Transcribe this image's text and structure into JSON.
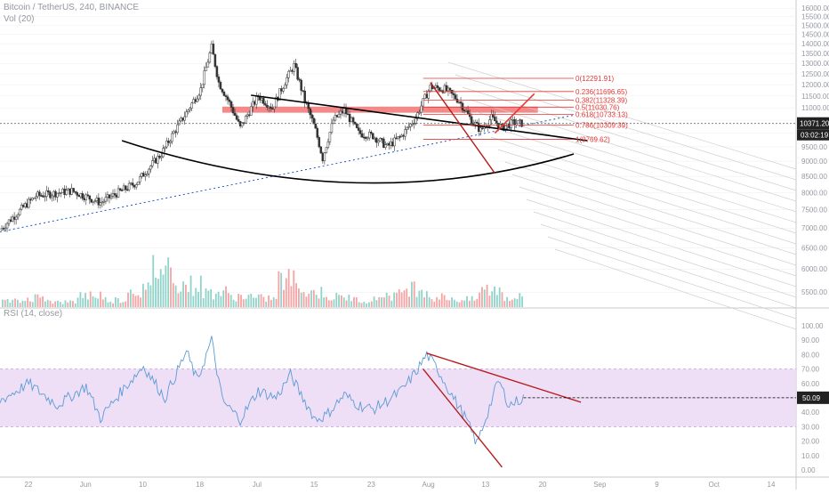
{
  "header": {
    "symbol_line": "Bitcoin / TetherUS, 240, BINANCE",
    "volume_line": "Vol (20)",
    "rsi_line": "RSI (14, close)"
  },
  "colors": {
    "up": "#26a69a",
    "down": "#ef5350",
    "axis_text": "#9598a1",
    "fib": "#e53935",
    "band": "#f06b6b",
    "trend": "#000000",
    "rsi_line": "#5b9bd5",
    "rsi_band": "#ead7f4",
    "grid": "#ececec"
  },
  "price_axis_labels": [
    "16000.00",
    "15500.00",
    "15000.00",
    "14500.00",
    "14000.00",
    "13500.00",
    "13000.00",
    "12500.00",
    "12000.00",
    "11500.00",
    "11000.00",
    "10500.00",
    "10000.00",
    "9500.00",
    "9000.00",
    "8500.00",
    "8000.00",
    "7500.00",
    "7000.00",
    "6500.00",
    "6000.00",
    "5500.00"
  ],
  "current_price": {
    "price": "10371.20",
    "countdown": "03:02:19"
  },
  "rsi_axis_labels": [
    "100.00",
    "90.00",
    "80.00",
    "70.00",
    "60.00",
    "50.00",
    "40.00",
    "30.00",
    "20.00",
    "10.00",
    "0.00"
  ],
  "rsi_current": "50.09",
  "time_axis_labels": [
    "22",
    "Jun",
    "10",
    "18",
    "Jul",
    "15",
    "23",
    "Aug",
    "13",
    "20",
    "Sep",
    "9",
    "Oct",
    "14"
  ],
  "chart_data": [
    {
      "type": "candlestick",
      "title": "Bitcoin / TetherUS, 240, BINANCE",
      "ylim": [
        5200,
        16500
      ],
      "price_scale": "log",
      "x_labels": [
        "22",
        "Jun",
        "10",
        "18",
        "Jul",
        "15",
        "23",
        "Aug",
        "13",
        "20",
        "Sep",
        "9",
        "Oct",
        "14"
      ],
      "last_price": 10371.2,
      "trend_path": [
        {
          "t": 0,
          "p": 6950
        },
        {
          "t": 10,
          "p": 7900
        },
        {
          "t": 20,
          "p": 8050
        },
        {
          "t": 28,
          "p": 7700
        },
        {
          "t": 38,
          "p": 8300
        },
        {
          "t": 45,
          "p": 9250
        },
        {
          "t": 52,
          "p": 10800
        },
        {
          "t": 56,
          "p": 11800
        },
        {
          "t": 59,
          "p": 13800
        },
        {
          "t": 61,
          "p": 12100
        },
        {
          "t": 64,
          "p": 11200
        },
        {
          "t": 67,
          "p": 10200
        },
        {
          "t": 72,
          "p": 11500
        },
        {
          "t": 76,
          "p": 11000
        },
        {
          "t": 80,
          "p": 12300
        },
        {
          "t": 82,
          "p": 12900
        },
        {
          "t": 85,
          "p": 11300
        },
        {
          "t": 88,
          "p": 10100
        },
        {
          "t": 90,
          "p": 9100
        },
        {
          "t": 93,
          "p": 10500
        },
        {
          "t": 96,
          "p": 10900
        },
        {
          "t": 100,
          "p": 10000
        },
        {
          "t": 104,
          "p": 9900
        },
        {
          "t": 108,
          "p": 9500
        },
        {
          "t": 112,
          "p": 9900
        },
        {
          "t": 116,
          "p": 10600
        },
        {
          "t": 120,
          "p": 11900
        },
        {
          "t": 124,
          "p": 11800
        },
        {
          "t": 128,
          "p": 11300
        },
        {
          "t": 131,
          "p": 10600
        },
        {
          "t": 134,
          "p": 10100
        },
        {
          "t": 137,
          "p": 10600
        },
        {
          "t": 140,
          "p": 10200
        },
        {
          "t": 143,
          "p": 10400
        },
        {
          "t": 146,
          "p": 10371
        }
      ],
      "fibonacci": [
        {
          "label": "0(12291.91)",
          "price": 12291.91
        },
        {
          "label": "0.236(11696.65)",
          "price": 11696.65
        },
        {
          "label": "0.382(11328.39)",
          "price": 11328.39
        },
        {
          "label": "0.5(11030.76)",
          "price": 11030.76
        },
        {
          "label": "0.618(10733.13)",
          "price": 10733.13
        },
        {
          "label": "0.786(10309.39)",
          "price": 10309.39
        },
        {
          "label": "1(9769.62)",
          "price": 9769.62
        }
      ],
      "resistance_zone": [
        10800,
        11050
      ]
    },
    {
      "type": "bar",
      "title": "Vol (20)",
      "series": [
        {
          "values_relative": [
            0.12,
            0.2,
            0.1,
            0.25,
            0.15,
            0.35,
            0.8,
            0.45,
            0.3,
            0.22,
            0.18,
            0.55,
            0.3,
            0.2,
            0.15,
            0.25,
            0.4,
            0.2,
            0.15,
            0.35,
            0.2
          ]
        }
      ]
    },
    {
      "type": "line",
      "title": "RSI (14, close)",
      "ylim": [
        0,
        100
      ],
      "band": [
        30,
        70
      ],
      "last_value": 50.09,
      "path": [
        {
          "t": 0,
          "v": 48
        },
        {
          "t": 8,
          "v": 60
        },
        {
          "t": 16,
          "v": 45
        },
        {
          "t": 24,
          "v": 58
        },
        {
          "t": 28,
          "v": 36
        },
        {
          "t": 34,
          "v": 55
        },
        {
          "t": 40,
          "v": 72
        },
        {
          "t": 46,
          "v": 50
        },
        {
          "t": 52,
          "v": 82
        },
        {
          "t": 55,
          "v": 62
        },
        {
          "t": 59,
          "v": 90
        },
        {
          "t": 62,
          "v": 48
        },
        {
          "t": 67,
          "v": 35
        },
        {
          "t": 72,
          "v": 55
        },
        {
          "t": 77,
          "v": 50
        },
        {
          "t": 81,
          "v": 66
        },
        {
          "t": 84,
          "v": 52
        },
        {
          "t": 88,
          "v": 35
        },
        {
          "t": 91,
          "v": 38
        },
        {
          "t": 96,
          "v": 52
        },
        {
          "t": 100,
          "v": 45
        },
        {
          "t": 104,
          "v": 42
        },
        {
          "t": 108,
          "v": 48
        },
        {
          "t": 112,
          "v": 55
        },
        {
          "t": 116,
          "v": 68
        },
        {
          "t": 119,
          "v": 80
        },
        {
          "t": 122,
          "v": 70
        },
        {
          "t": 126,
          "v": 52
        },
        {
          "t": 130,
          "v": 35
        },
        {
          "t": 133,
          "v": 18
        },
        {
          "t": 136,
          "v": 40
        },
        {
          "t": 139,
          "v": 62
        },
        {
          "t": 142,
          "v": 45
        },
        {
          "t": 146,
          "v": 50
        }
      ]
    }
  ]
}
